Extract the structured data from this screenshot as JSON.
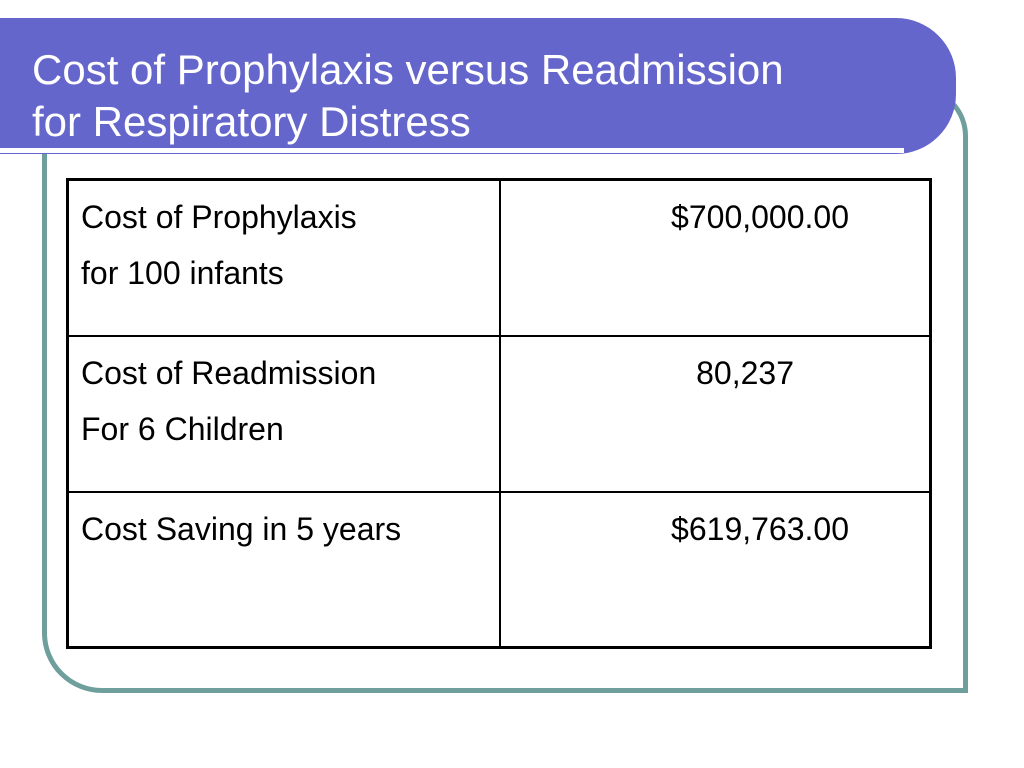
{
  "slide": {
    "title_line1": "Cost of Prophylaxis versus Readmission",
    "title_line2": "for Respiratory Distress"
  },
  "table": {
    "rows": [
      {
        "label_line1": "Cost of Prophylaxis",
        "label_line2": "for 100 infants",
        "value": "$700,000.00"
      },
      {
        "label_line1": "Cost of Readmission",
        "label_line2": "For 6 Children",
        "value": "80,237"
      },
      {
        "label_line1": "Cost Saving in 5 years",
        "label_line2": "",
        "value": "$619,763.00"
      }
    ]
  },
  "colors": {
    "title_banner": "#6566cc",
    "frame_border": "#6f9f9c",
    "title_text": "#ffffff"
  }
}
